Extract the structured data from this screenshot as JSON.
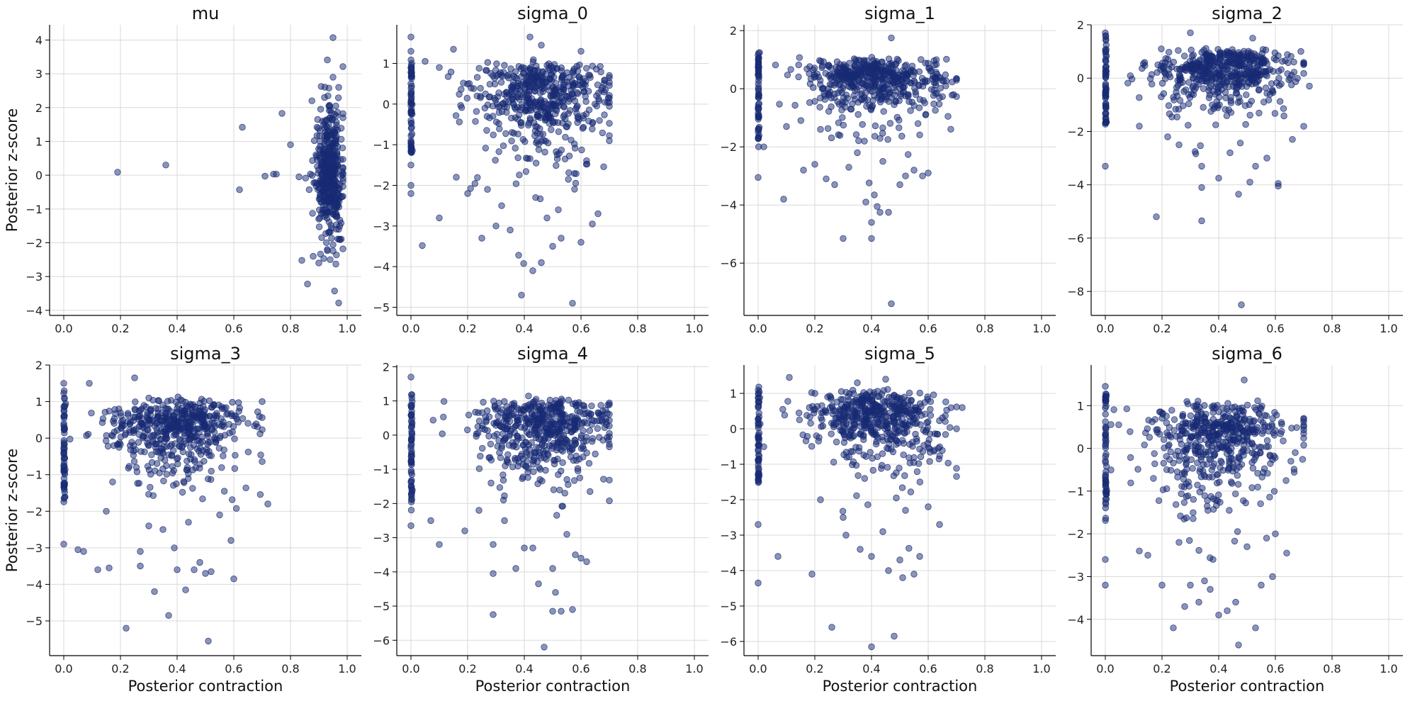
{
  "chart_data": [
    {
      "type": "scatter",
      "title": "mu",
      "xlabel": "",
      "ylabel": "Posterior z-score",
      "xlim": [
        -0.05,
        1.05
      ],
      "ylim": [
        -4.15,
        4.45
      ],
      "xticks": [
        0.0,
        0.2,
        0.4,
        0.6,
        0.8,
        1.0
      ],
      "yticks": [
        -4,
        -3,
        -2,
        -1,
        0,
        1,
        2,
        3,
        4
      ],
      "color": "#172a73",
      "points": [
        [
          0.19,
          0.09
        ],
        [
          0.36,
          0.3
        ],
        [
          0.62,
          -0.43
        ],
        [
          0.63,
          1.42
        ],
        [
          0.71,
          -0.03
        ],
        [
          0.74,
          0.03
        ],
        [
          0.75,
          0.03
        ],
        [
          0.77,
          1.83
        ],
        [
          0.8,
          0.9
        ],
        [
          0.83,
          -0.05
        ],
        [
          0.84,
          -2.52
        ],
        [
          0.86,
          -3.22
        ],
        [
          0.88,
          -2.4
        ],
        [
          0.9,
          -2.6
        ],
        [
          0.92,
          2.3
        ],
        [
          0.93,
          3.41
        ],
        [
          0.95,
          4.07
        ],
        [
          0.97,
          -3.78
        ],
        [
          0.97,
          2.6
        ],
        [
          0.96,
          -2.63
        ],
        [
          0.94,
          -2.5
        ],
        [
          0.95,
          2.9
        ],
        [
          0.93,
          -2.2
        ],
        [
          0.96,
          2.05
        ],
        [
          0.91,
          -1.85
        ],
        [
          0.92,
          1.6
        ],
        [
          0.97,
          -1.6
        ],
        [
          0.89,
          0.6
        ],
        [
          0.9,
          -1.3
        ],
        [
          0.94,
          1.2
        ],
        [
          0.95,
          -0.9
        ],
        [
          0.93,
          -0.5
        ],
        [
          0.96,
          0.5
        ],
        [
          0.92,
          0.2
        ],
        [
          0.95,
          -0.2
        ],
        [
          0.94,
          0.8
        ],
        [
          0.91,
          -0.8
        ],
        [
          0.96,
          1.1
        ],
        [
          0.93,
          -1.1
        ],
        [
          0.95,
          0.0
        ]
      ],
      "cluster": {
        "x_center": 0.94,
        "x_spread": 0.025,
        "y_spread": 0.95,
        "count": 420
      }
    },
    {
      "type": "scatter",
      "title": "sigma_0",
      "xlabel": "",
      "ylabel": "",
      "xlim": [
        -0.05,
        1.05
      ],
      "ylim": [
        -5.2,
        1.95
      ],
      "xticks": [
        0.0,
        0.2,
        0.4,
        0.6,
        0.8,
        1.0
      ],
      "yticks": [
        -5,
        -4,
        -3,
        -2,
        -1,
        0,
        1
      ],
      "color": "#172a73",
      "points": [
        [
          0.0,
          1.65
        ],
        [
          0.0,
          1.3
        ],
        [
          0.0,
          0.5
        ],
        [
          0.0,
          -0.9
        ],
        [
          0.0,
          -1.5
        ],
        [
          0.0,
          -2.2
        ],
        [
          0.0,
          -2.0
        ],
        [
          0.04,
          -3.48
        ],
        [
          0.1,
          -2.8
        ],
        [
          0.25,
          -3.3
        ],
        [
          0.3,
          -3.0
        ],
        [
          0.32,
          -2.5
        ],
        [
          0.35,
          -3.1
        ],
        [
          0.38,
          -3.72
        ],
        [
          0.39,
          -4.7
        ],
        [
          0.43,
          -4.1
        ],
        [
          0.46,
          -3.9
        ],
        [
          0.5,
          -3.5
        ],
        [
          0.53,
          -3.3
        ],
        [
          0.57,
          -4.9
        ],
        [
          0.6,
          -3.4
        ],
        [
          0.64,
          -2.95
        ],
        [
          0.66,
          -2.7
        ],
        [
          0.2,
          -2.2
        ],
        [
          0.16,
          -1.8
        ],
        [
          0.44,
          -2.3
        ],
        [
          0.52,
          -2.6
        ],
        [
          0.42,
          1.65
        ],
        [
          0.46,
          1.45
        ],
        [
          0.6,
          1.3
        ],
        [
          0.15,
          1.35
        ],
        [
          0.05,
          1.05
        ],
        [
          0.1,
          0.9
        ],
        [
          0.27,
          -2.1
        ],
        [
          0.48,
          -2.8
        ]
      ],
      "cluster": {
        "x_center": 0.46,
        "x_spread": 0.12,
        "y_spread": 0.9,
        "count": 520
      },
      "stem": {
        "x": 0.0,
        "y_min": -1.2,
        "y_max": 1.1,
        "count": 60
      }
    },
    {
      "type": "scatter",
      "title": "sigma_1",
      "xlabel": "",
      "ylabel": "",
      "xlim": [
        -0.05,
        1.05
      ],
      "ylim": [
        -7.8,
        2.2
      ],
      "xticks": [
        0.0,
        0.2,
        0.4,
        0.6,
        0.8,
        1.0
      ],
      "yticks": [
        -6,
        -4,
        -2,
        0,
        2
      ],
      "color": "#172a73",
      "points": [
        [
          0.0,
          -3.05
        ],
        [
          0.02,
          -2.0
        ],
        [
          0.09,
          -3.8
        ],
        [
          0.3,
          -5.15
        ],
        [
          0.38,
          -3.9
        ],
        [
          0.4,
          -4.6
        ],
        [
          0.4,
          -5.15
        ],
        [
          0.41,
          -3.65
        ],
        [
          0.42,
          -4.05
        ],
        [
          0.43,
          -4.25
        ],
        [
          0.46,
          -4.25
        ],
        [
          0.47,
          -7.4
        ],
        [
          0.47,
          1.75
        ],
        [
          0.5,
          -3.3
        ],
        [
          0.52,
          -3.0
        ],
        [
          0.55,
          -2.8
        ],
        [
          0.58,
          -3.0
        ],
        [
          0.6,
          -2.9
        ],
        [
          0.67,
          -0.95
        ],
        [
          0.24,
          -3.1
        ],
        [
          0.27,
          -3.3
        ],
        [
          0.2,
          -2.6
        ],
        [
          0.16,
          -2.8
        ],
        [
          0.35,
          -2.2
        ],
        [
          0.22,
          -1.4
        ],
        [
          0.44,
          -2.5
        ],
        [
          0.32,
          -2.7
        ],
        [
          0.1,
          -1.3
        ]
      ],
      "cluster": {
        "x_center": 0.4,
        "x_spread": 0.12,
        "y_spread": 0.75,
        "count": 520
      },
      "stem": {
        "x": 0.0,
        "y_min": -2.0,
        "y_max": 1.3,
        "count": 60
      }
    },
    {
      "type": "scatter",
      "title": "sigma_2",
      "xlabel": "",
      "ylabel": "",
      "xlim": [
        -0.05,
        1.05
      ],
      "ylim": [
        -8.9,
        2.0
      ],
      "xticks": [
        0.0,
        0.2,
        0.4,
        0.6,
        0.8,
        1.0
      ],
      "yticks": [
        -8,
        -6,
        -4,
        -2,
        0,
        2
      ],
      "color": "#172a73",
      "points": [
        [
          0.0,
          -3.3
        ],
        [
          0.0,
          1.7
        ],
        [
          0.18,
          -5.2
        ],
        [
          0.34,
          -5.35
        ],
        [
          0.34,
          -4.1
        ],
        [
          0.4,
          -3.75
        ],
        [
          0.48,
          -8.5
        ],
        [
          0.51,
          -3.9
        ],
        [
          0.47,
          -4.35
        ],
        [
          0.61,
          -3.95
        ],
        [
          0.61,
          -4.05
        ],
        [
          0.66,
          -2.3
        ],
        [
          0.69,
          1.0
        ],
        [
          0.72,
          -0.3
        ],
        [
          0.34,
          -3.3
        ],
        [
          0.22,
          -2.2
        ],
        [
          0.26,
          -2.5
        ],
        [
          0.53,
          -3.3
        ],
        [
          0.57,
          -3.0
        ],
        [
          0.44,
          -2.8
        ],
        [
          0.12,
          -1.8
        ],
        [
          0.3,
          1.7
        ],
        [
          0.52,
          1.5
        ]
      ],
      "cluster": {
        "x_center": 0.42,
        "x_spread": 0.12,
        "y_spread": 0.75,
        "count": 520
      },
      "stem": {
        "x": 0.0,
        "y_min": -1.8,
        "y_max": 1.6,
        "count": 60
      }
    },
    {
      "type": "scatter",
      "title": "sigma_3",
      "xlabel": "Posterior contraction",
      "ylabel": "Posterior z-score",
      "xlim": [
        -0.05,
        1.05
      ],
      "ylim": [
        -5.95,
        2.0
      ],
      "xticks": [
        0.0,
        0.2,
        0.4,
        0.6,
        0.8,
        1.0
      ],
      "yticks": [
        -5,
        -4,
        -3,
        -2,
        -1,
        0,
        1,
        2
      ],
      "color": "#172a73",
      "points": [
        [
          0.0,
          -2.9
        ],
        [
          0.0,
          1.5
        ],
        [
          0.05,
          -3.05
        ],
        [
          0.07,
          -3.1
        ],
        [
          0.12,
          -3.6
        ],
        [
          0.16,
          -3.55
        ],
        [
          0.22,
          -5.2
        ],
        [
          0.27,
          -3.5
        ],
        [
          0.27,
          -3.1
        ],
        [
          0.32,
          -4.2
        ],
        [
          0.37,
          -4.85
        ],
        [
          0.4,
          -3.6
        ],
        [
          0.43,
          -4.15
        ],
        [
          0.46,
          -3.6
        ],
        [
          0.48,
          -3.4
        ],
        [
          0.5,
          -3.7
        ],
        [
          0.52,
          -3.65
        ],
        [
          0.51,
          -5.55
        ],
        [
          0.6,
          -3.85
        ],
        [
          0.59,
          -2.8
        ],
        [
          0.7,
          1.0
        ],
        [
          0.72,
          -1.8
        ],
        [
          0.25,
          1.65
        ],
        [
          0.09,
          1.5
        ],
        [
          0.15,
          -2.0
        ],
        [
          0.35,
          -2.5
        ],
        [
          0.44,
          -2.3
        ],
        [
          0.55,
          -2.1
        ],
        [
          0.3,
          -2.4
        ],
        [
          0.39,
          -3.0
        ]
      ],
      "cluster": {
        "x_center": 0.4,
        "x_spread": 0.12,
        "y_spread": 0.75,
        "count": 520
      },
      "stem": {
        "x": 0.0,
        "y_min": -1.8,
        "y_max": 1.3,
        "count": 60
      }
    },
    {
      "type": "scatter",
      "title": "sigma_4",
      "xlabel": "Posterior contraction",
      "ylabel": "",
      "xlim": [
        -0.05,
        1.05
      ],
      "ylim": [
        -6.45,
        2.05
      ],
      "xticks": [
        0.0,
        0.2,
        0.4,
        0.6,
        0.8,
        1.0
      ],
      "yticks": [
        -6,
        -5,
        -4,
        -3,
        -2,
        -1,
        0,
        1,
        2
      ],
      "color": "#172a73",
      "points": [
        [
          0.0,
          -2.65
        ],
        [
          0.0,
          1.7
        ],
        [
          0.07,
          -2.5
        ],
        [
          0.1,
          -3.2
        ],
        [
          0.19,
          -2.8
        ],
        [
          0.29,
          -3.2
        ],
        [
          0.29,
          -4.05
        ],
        [
          0.29,
          -5.25
        ],
        [
          0.37,
          -3.9
        ],
        [
          0.4,
          -3.3
        ],
        [
          0.45,
          -4.35
        ],
        [
          0.47,
          -6.2
        ],
        [
          0.5,
          -5.15
        ],
        [
          0.51,
          -4.6
        ],
        [
          0.53,
          -5.15
        ],
        [
          0.57,
          -5.1
        ],
        [
          0.58,
          -3.5
        ],
        [
          0.62,
          -3.7
        ],
        [
          0.6,
          -3.6
        ],
        [
          0.69,
          0.3
        ],
        [
          0.5,
          -3.9
        ],
        [
          0.43,
          -3.3
        ],
        [
          0.33,
          -2.5
        ],
        [
          0.24,
          -2.2
        ],
        [
          0.55,
          -2.9
        ]
      ],
      "cluster": {
        "x_center": 0.46,
        "x_spread": 0.12,
        "y_spread": 0.8,
        "count": 520
      },
      "stem": {
        "x": 0.0,
        "y_min": -2.2,
        "y_max": 1.2,
        "count": 60
      }
    },
    {
      "type": "scatter",
      "title": "sigma_5",
      "xlabel": "Posterior contraction",
      "ylabel": "",
      "xlim": [
        -0.05,
        1.05
      ],
      "ylim": [
        -6.4,
        1.8
      ],
      "xticks": [
        0.0,
        0.2,
        0.4,
        0.6,
        0.8,
        1.0
      ],
      "yticks": [
        -6,
        -5,
        -4,
        -3,
        -2,
        -1,
        0,
        1
      ],
      "color": "#172a73",
      "points": [
        [
          0.0,
          -4.35
        ],
        [
          0.0,
          -2.7
        ],
        [
          0.07,
          -3.6
        ],
        [
          0.19,
          -4.1
        ],
        [
          0.26,
          -5.6
        ],
        [
          0.31,
          -3.0
        ],
        [
          0.36,
          -3.4
        ],
        [
          0.4,
          -3.6
        ],
        [
          0.4,
          -6.15
        ],
        [
          0.46,
          -4.0
        ],
        [
          0.48,
          -5.85
        ],
        [
          0.5,
          -3.7
        ],
        [
          0.51,
          -4.2
        ],
        [
          0.55,
          -4.1
        ],
        [
          0.57,
          -3.6
        ],
        [
          0.64,
          -2.7
        ],
        [
          0.72,
          0.6
        ],
        [
          0.11,
          1.45
        ],
        [
          0.35,
          1.3
        ],
        [
          0.45,
          1.4
        ],
        [
          0.3,
          -2.5
        ],
        [
          0.44,
          -2.9
        ],
        [
          0.52,
          -2.3
        ],
        [
          0.22,
          -2.0
        ],
        [
          0.6,
          -2.2
        ]
      ],
      "cluster": {
        "x_center": 0.42,
        "x_spread": 0.12,
        "y_spread": 0.75,
        "count": 520
      },
      "stem": {
        "x": 0.0,
        "y_min": -1.6,
        "y_max": 1.2,
        "count": 60
      }
    },
    {
      "type": "scatter",
      "title": "sigma_6",
      "xlabel": "Posterior contraction",
      "ylabel": "",
      "xlim": [
        -0.05,
        1.05
      ],
      "ylim": [
        -4.85,
        1.95
      ],
      "xticks": [
        0.0,
        0.2,
        0.4,
        0.6,
        0.8,
        1.0
      ],
      "yticks": [
        -4,
        -3,
        -2,
        -1,
        0,
        1
      ],
      "color": "#172a73",
      "points": [
        [
          0.0,
          -3.2
        ],
        [
          0.0,
          -2.6
        ],
        [
          0.0,
          1.45
        ],
        [
          0.2,
          -3.2
        ],
        [
          0.24,
          -4.2
        ],
        [
          0.28,
          -3.7
        ],
        [
          0.3,
          -3.2
        ],
        [
          0.33,
          -3.6
        ],
        [
          0.35,
          -3.1
        ],
        [
          0.37,
          -3.3
        ],
        [
          0.4,
          -3.9
        ],
        [
          0.43,
          -3.8
        ],
        [
          0.46,
          -3.6
        ],
        [
          0.47,
          -4.6
        ],
        [
          0.53,
          -4.2
        ],
        [
          0.55,
          -3.2
        ],
        [
          0.59,
          -3.0
        ],
        [
          0.64,
          -2.45
        ],
        [
          0.67,
          -0.1
        ],
        [
          0.49,
          1.6
        ],
        [
          0.15,
          -2.5
        ],
        [
          0.12,
          -2.4
        ],
        [
          0.26,
          -2.2
        ],
        [
          0.38,
          -2.6
        ],
        [
          0.5,
          -2.3
        ],
        [
          0.6,
          -2.0
        ]
      ],
      "cluster": {
        "x_center": 0.4,
        "x_spread": 0.12,
        "y_spread": 0.8,
        "count": 520
      },
      "stem": {
        "x": 0.0,
        "y_min": -1.8,
        "y_max": 1.3,
        "count": 60
      }
    }
  ]
}
